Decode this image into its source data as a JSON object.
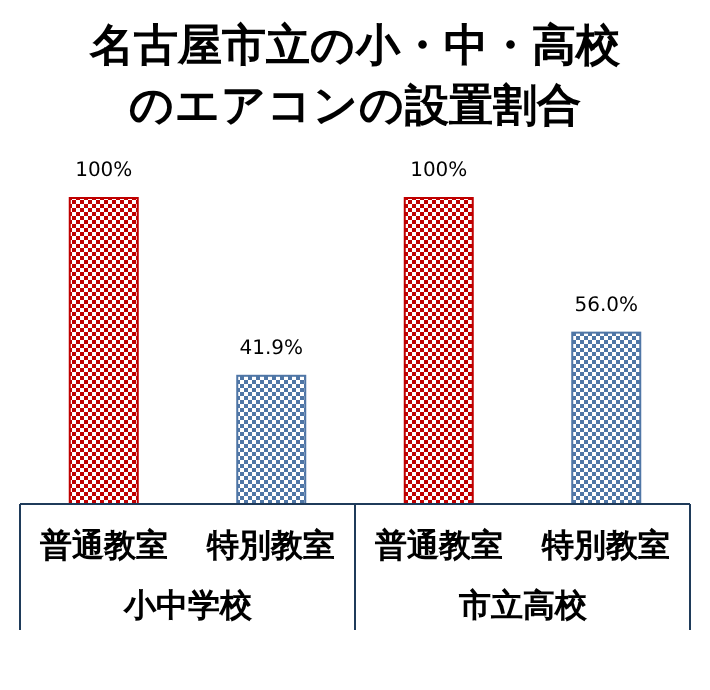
{
  "chart_data": {
    "type": "bar",
    "title": "名古屋市立の小・中・高校のエアコンの設置割合",
    "categories": [
      "普通教室",
      "特別教室",
      "普通教室",
      "特別教室"
    ],
    "values": [
      100,
      41.9,
      100,
      56.0
    ],
    "colors": [
      "#c00000",
      "#4f76a6",
      "#c00000",
      "#4f76a6"
    ],
    "value_labels": [
      "100%",
      "41.9%",
      "100%",
      "56.0%"
    ],
    "annotations": [
      "小中学校",
      "市立高校"
    ]
  }
}
